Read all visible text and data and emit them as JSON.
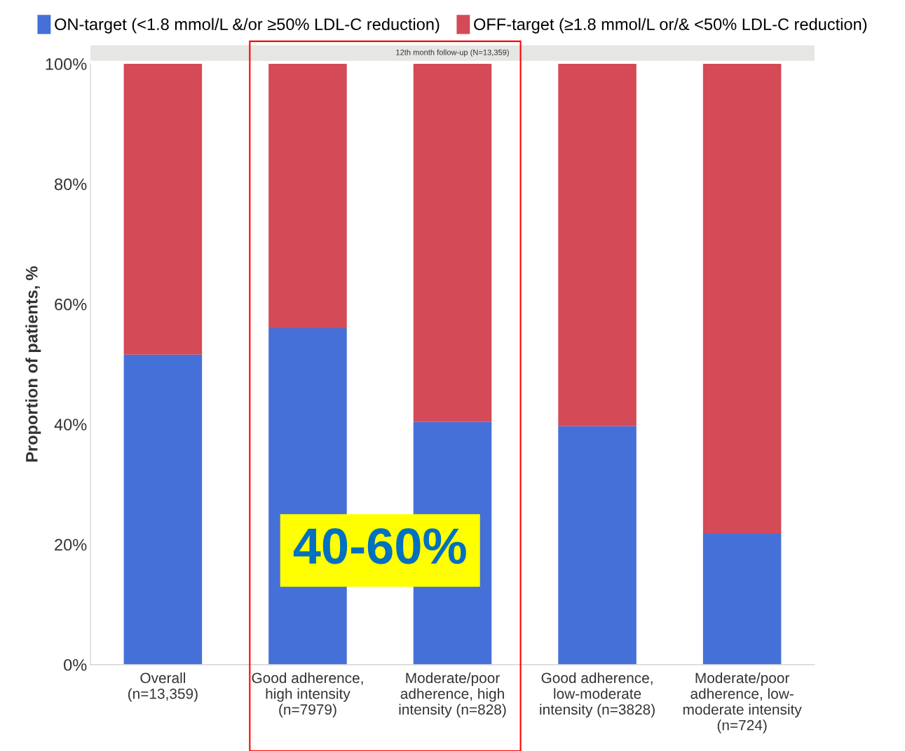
{
  "chart_data": {
    "type": "bar",
    "stacked": true,
    "subtitle": "12th month follow-up (N=13,359)",
    "ylabel": "Proportion of patients, %",
    "categories": [
      "Overall\n(n=13,359)",
      "Good adherence,\nhigh intensity\n(n=7979)",
      "Moderate/poor\nadherence, high\nintensity (n=828)",
      "Good adherence,\nlow-moderate\nintensity (n=3828)",
      "Moderate/poor\nadherence, low-\nmoderate intensity\n(n=724)"
    ],
    "series": [
      {
        "name": "ON-target (<1.8 mmol/L &/or ≥50% LDL-C reduction)",
        "color": "#4570d8",
        "values": [
          51.6,
          56.0,
          40.4,
          39.7,
          21.8
        ]
      },
      {
        "name": "OFF-target (≥1.8 mmol/L or/& <50% LDL-C reduction)",
        "color": "#d44a57",
        "values": [
          48.4,
          44.0,
          59.6,
          60.3,
          78.2
        ]
      }
    ],
    "ylim": [
      0,
      100
    ],
    "yticks": [
      {
        "value": 0,
        "label": "0%"
      },
      {
        "value": 20,
        "label": "20%"
      },
      {
        "value": 40,
        "label": "40%"
      },
      {
        "value": 60,
        "label": "60%"
      },
      {
        "value": 80,
        "label": "80%"
      },
      {
        "value": 100,
        "label": "100%"
      }
    ],
    "grid": false,
    "legend": "top",
    "annotations": [
      "40-60%"
    ]
  }
}
